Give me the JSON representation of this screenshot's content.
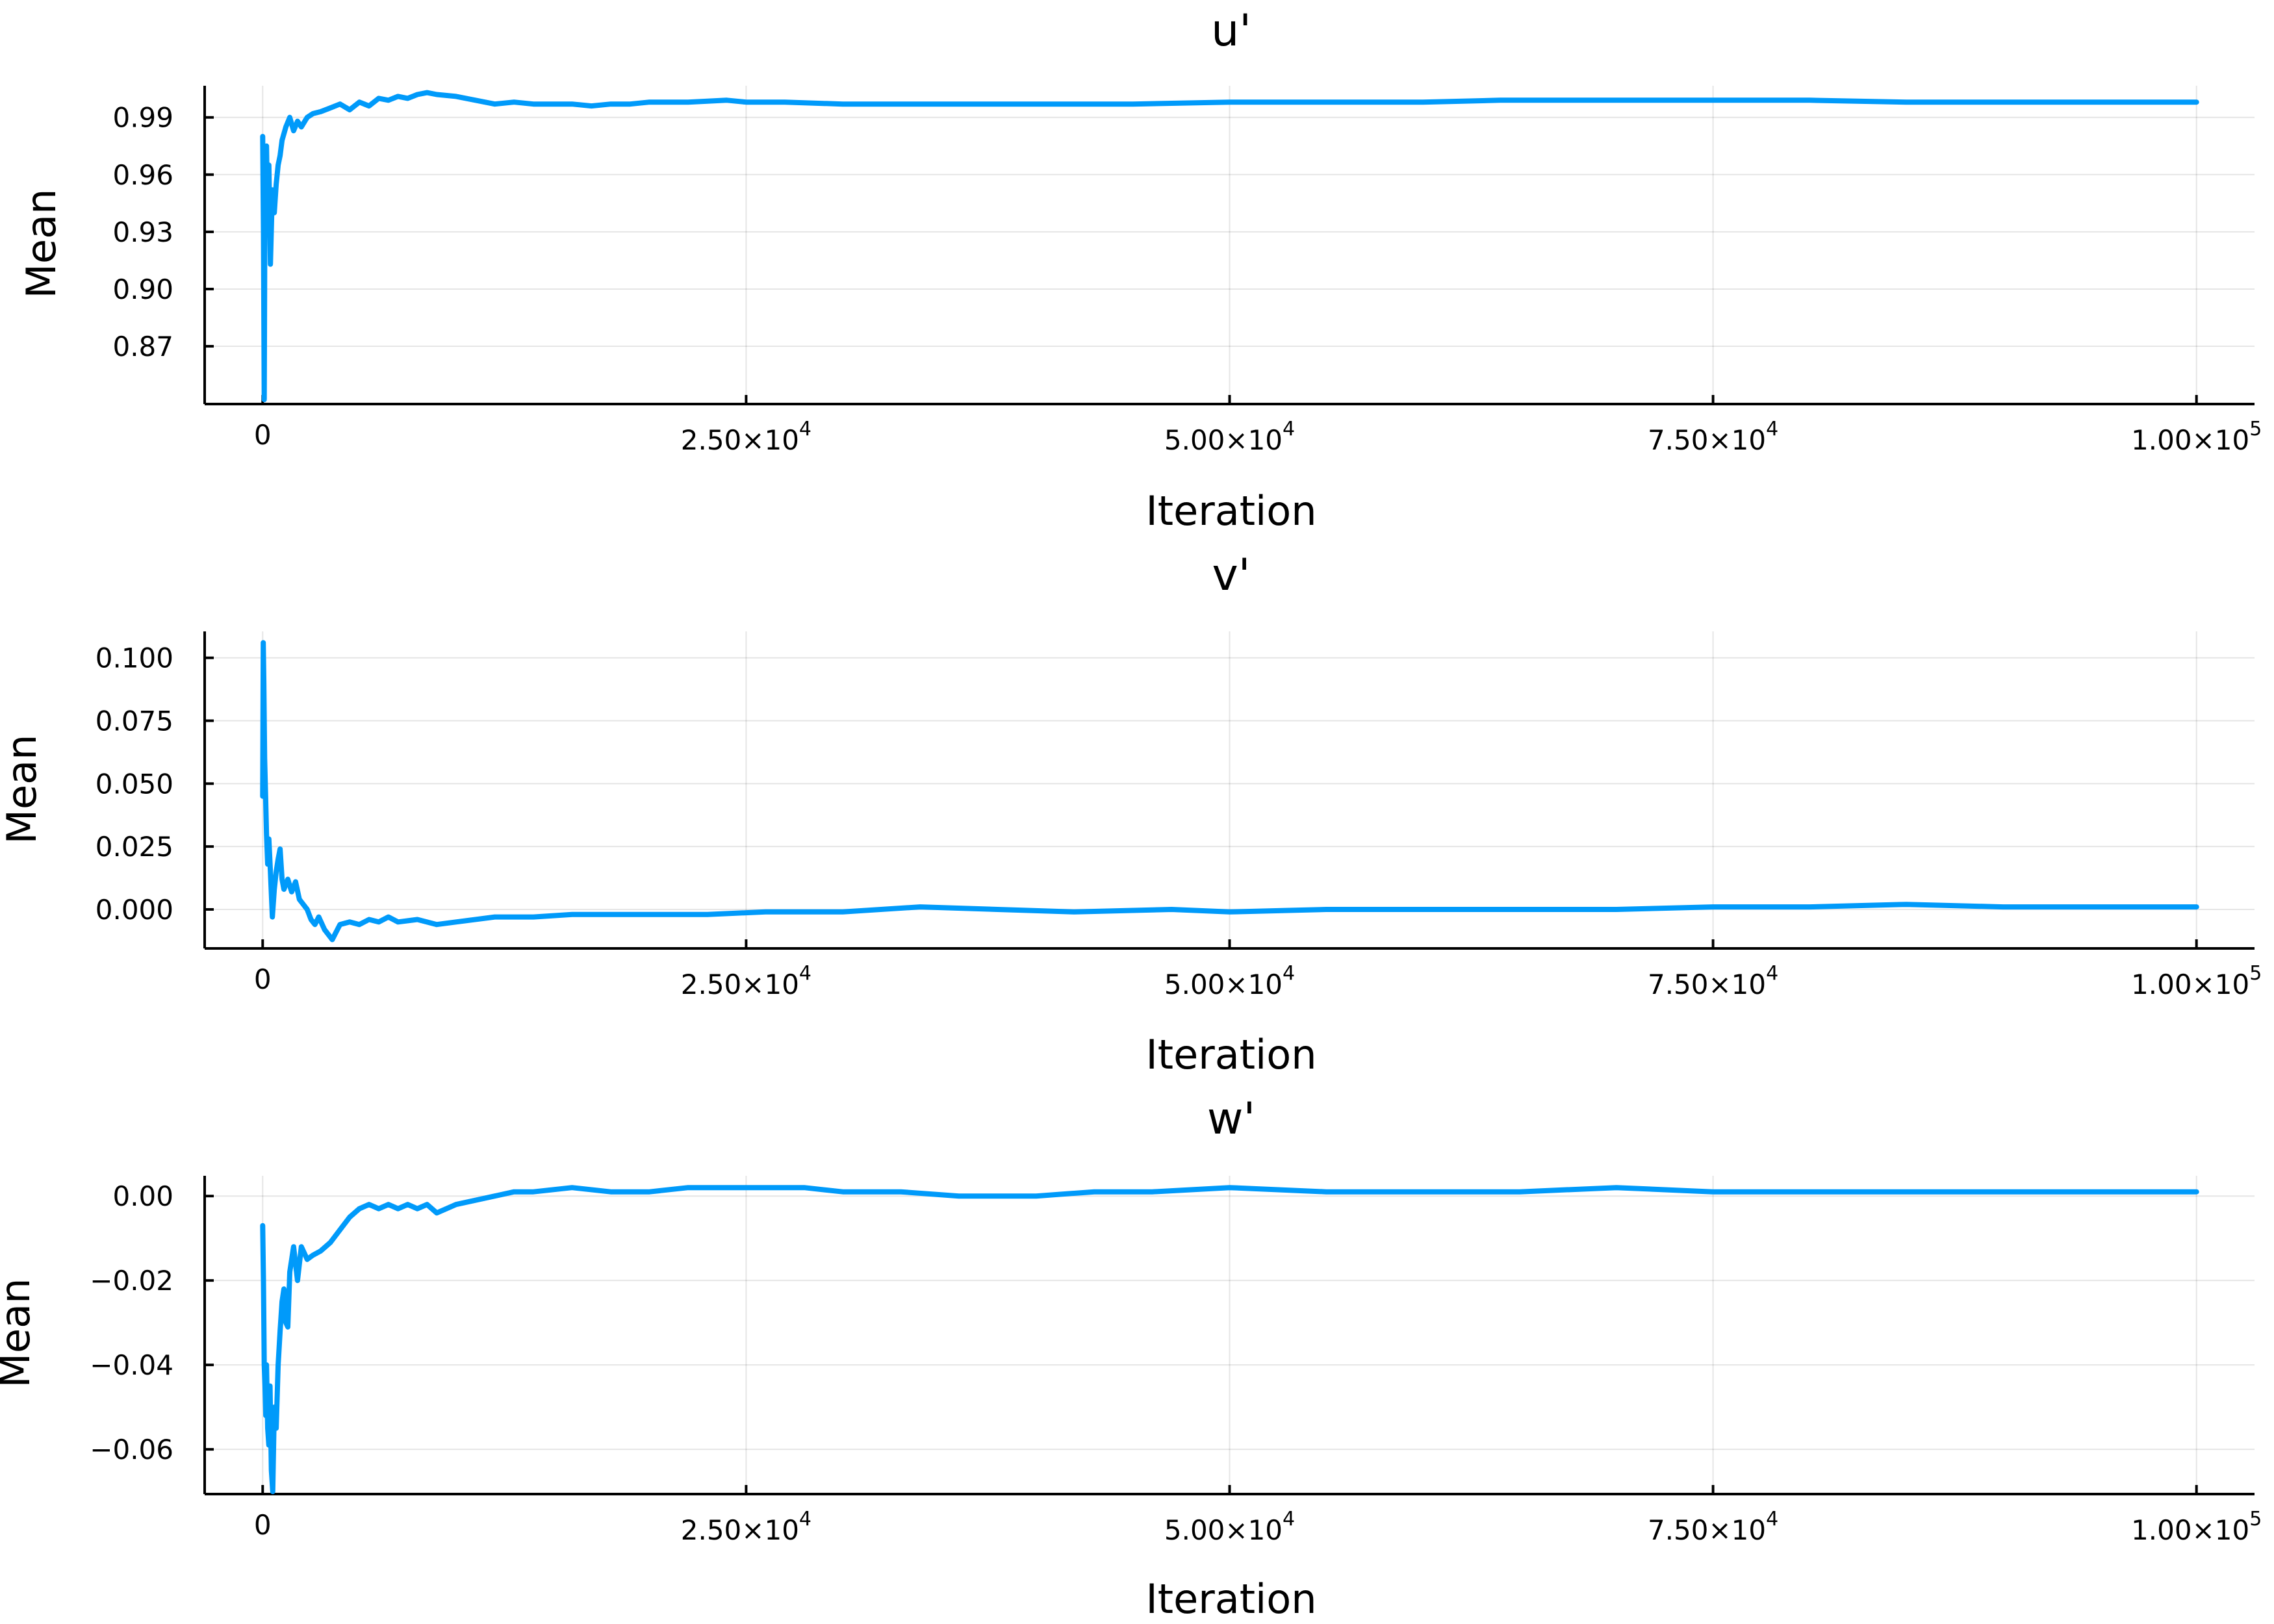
{
  "chart_data": [
    {
      "type": "line",
      "title": "u'",
      "xlabel": "Iteration",
      "ylabel": "Mean",
      "xlim": [
        -3000,
        103000
      ],
      "ylim": [
        0.8397,
        1.0066
      ],
      "grid": true,
      "legend": "none",
      "xticks": [
        {
          "value": 0,
          "mantissa": "0",
          "exp": ""
        },
        {
          "value": 25000,
          "mantissa": "2.50×10",
          "exp": "4"
        },
        {
          "value": 50000,
          "mantissa": "5.00×10",
          "exp": "4"
        },
        {
          "value": 75000,
          "mantissa": "7.50×10",
          "exp": "4"
        },
        {
          "value": 100000,
          "mantissa": "1.00×10",
          "exp": "5"
        }
      ],
      "yticks": [
        {
          "value": 0.87,
          "label": "0.87"
        },
        {
          "value": 0.9,
          "label": "0.90"
        },
        {
          "value": 0.93,
          "label": "0.93"
        },
        {
          "value": 0.96,
          "label": "0.96"
        },
        {
          "value": 0.99,
          "label": "0.99"
        }
      ],
      "series": [
        {
          "color": "#009AFA",
          "x": [
            0,
            40,
            80,
            120,
            160,
            200,
            260,
            320,
            400,
            500,
            600,
            700,
            800,
            900,
            1000,
            1200,
            1400,
            1600,
            1800,
            2000,
            2300,
            2600,
            3000,
            3500,
            4000,
            4500,
            5000,
            5500,
            6000,
            6500,
            7000,
            7500,
            8000,
            8500,
            9000,
            10000,
            11000,
            12000,
            13000,
            14000,
            15000,
            16000,
            17000,
            18000,
            19000,
            20000,
            22000,
            24000,
            25000,
            27000,
            30000,
            33000,
            36000,
            40000,
            45000,
            50000,
            55000,
            60000,
            64000,
            70000,
            75000,
            80000,
            85000,
            90000,
            95000,
            100000
          ],
          "y": [
            0.98,
            0.93,
            0.842,
            0.965,
            0.945,
            0.975,
            0.935,
            0.965,
            0.913,
            0.952,
            0.94,
            0.955,
            0.965,
            0.97,
            0.978,
            0.985,
            0.99,
            0.983,
            0.988,
            0.985,
            0.99,
            0.992,
            0.993,
            0.995,
            0.997,
            0.994,
            0.998,
            0.996,
            1.0,
            0.999,
            1.001,
            1.0,
            1.002,
            1.003,
            1.002,
            1.001,
            0.999,
            0.997,
            0.998,
            0.997,
            0.997,
            0.997,
            0.996,
            0.997,
            0.997,
            0.998,
            0.998,
            0.999,
            0.998,
            0.998,
            0.997,
            0.997,
            0.997,
            0.997,
            0.997,
            0.998,
            0.998,
            0.998,
            0.999,
            0.999,
            0.999,
            0.999,
            0.998,
            0.998,
            0.998,
            0.998
          ]
        }
      ]
    },
    {
      "type": "line",
      "title": "v'",
      "xlabel": "Iteration",
      "ylabel": "Mean",
      "xlim": [
        -3000,
        103000
      ],
      "ylim": [
        -0.0155,
        0.1105
      ],
      "grid": true,
      "legend": "none",
      "xticks": [
        {
          "value": 0,
          "mantissa": "0",
          "exp": ""
        },
        {
          "value": 25000,
          "mantissa": "2.50×10",
          "exp": "4"
        },
        {
          "value": 50000,
          "mantissa": "5.00×10",
          "exp": "4"
        },
        {
          "value": 75000,
          "mantissa": "7.50×10",
          "exp": "4"
        },
        {
          "value": 100000,
          "mantissa": "1.00×10",
          "exp": "5"
        }
      ],
      "yticks": [
        {
          "value": 0.0,
          "label": "0.000"
        },
        {
          "value": 0.025,
          "label": "0.025"
        },
        {
          "value": 0.05,
          "label": "0.050"
        },
        {
          "value": 0.075,
          "label": "0.075"
        },
        {
          "value": 0.1,
          "label": "0.100"
        }
      ],
      "series": [
        {
          "color": "#009AFA",
          "x": [
            0,
            30,
            60,
            100,
            150,
            200,
            260,
            320,
            400,
            500,
            600,
            700,
            800,
            900,
            1000,
            1100,
            1300,
            1500,
            1700,
            1900,
            2100,
            2300,
            2500,
            2700,
            2900,
            3200,
            3600,
            4000,
            4500,
            5000,
            5500,
            6000,
            6500,
            7000,
            8000,
            9000,
            10000,
            12000,
            14000,
            16000,
            18000,
            20000,
            23000,
            26000,
            30000,
            34000,
            38000,
            42000,
            47000,
            50000,
            55000,
            60000,
            65000,
            70000,
            75000,
            80000,
            85000,
            90000,
            95000,
            100000
          ],
          "y": [
            0.045,
            0.106,
            0.09,
            0.06,
            0.045,
            0.03,
            0.018,
            0.028,
            0.015,
            -0.003,
            0.008,
            0.015,
            0.02,
            0.024,
            0.012,
            0.008,
            0.012,
            0.007,
            0.011,
            0.004,
            0.002,
            0.0,
            -0.004,
            -0.006,
            -0.003,
            -0.008,
            -0.012,
            -0.006,
            -0.005,
            -0.006,
            -0.004,
            -0.005,
            -0.003,
            -0.005,
            -0.004,
            -0.006,
            -0.005,
            -0.003,
            -0.003,
            -0.002,
            -0.002,
            -0.002,
            -0.002,
            -0.001,
            -0.001,
            0.001,
            0.0,
            -0.001,
            0.0,
            -0.001,
            0.0,
            0.0,
            0.0,
            0.0,
            0.001,
            0.001,
            0.002,
            0.001,
            0.001,
            0.001
          ]
        }
      ]
    },
    {
      "type": "line",
      "title": "w'",
      "xlabel": "Iteration",
      "ylabel": "Mean",
      "xlim": [
        -3000,
        103000
      ],
      "ylim": [
        -0.0706,
        0.0048
      ],
      "grid": true,
      "legend": "none",
      "xticks": [
        {
          "value": 0,
          "mantissa": "0",
          "exp": ""
        },
        {
          "value": 25000,
          "mantissa": "2.50×10",
          "exp": "4"
        },
        {
          "value": 50000,
          "mantissa": "5.00×10",
          "exp": "4"
        },
        {
          "value": 75000,
          "mantissa": "7.50×10",
          "exp": "4"
        },
        {
          "value": 100000,
          "mantissa": "1.00×10",
          "exp": "5"
        }
      ],
      "yticks": [
        {
          "value": -0.06,
          "label": "−0.06"
        },
        {
          "value": -0.04,
          "label": "−0.04"
        },
        {
          "value": -0.02,
          "label": "−0.02"
        },
        {
          "value": 0.0,
          "label": "0.00"
        }
      ],
      "series": [
        {
          "color": "#009AFA",
          "x": [
            0,
            40,
            80,
            120,
            160,
            200,
            260,
            320,
            380,
            450,
            520,
            600,
            700,
            800,
            900,
            1000,
            1100,
            1200,
            1300,
            1400,
            1600,
            1800,
            2000,
            2300,
            2600,
            3000,
            3500,
            4000,
            4500,
            5000,
            5500,
            6000,
            6500,
            7000,
            7500,
            8000,
            8500,
            9000,
            9500,
            10000,
            11000,
            12000,
            13000,
            14000,
            16000,
            18000,
            20000,
            22000,
            24000,
            26000,
            28000,
            30000,
            33000,
            36000,
            40000,
            43000,
            46000,
            50000,
            55000,
            60000,
            65000,
            70000,
            75000,
            80000,
            85000,
            90000,
            95000,
            100000
          ],
          "y": [
            -0.007,
            -0.02,
            -0.04,
            -0.045,
            -0.052,
            -0.04,
            -0.055,
            -0.059,
            -0.045,
            -0.065,
            -0.07,
            -0.05,
            -0.055,
            -0.04,
            -0.032,
            -0.025,
            -0.022,
            -0.03,
            -0.031,
            -0.018,
            -0.012,
            -0.02,
            -0.012,
            -0.015,
            -0.014,
            -0.013,
            -0.011,
            -0.008,
            -0.005,
            -0.003,
            -0.002,
            -0.003,
            -0.002,
            -0.003,
            -0.002,
            -0.003,
            -0.002,
            -0.004,
            -0.003,
            -0.002,
            -0.001,
            0.0,
            0.001,
            0.001,
            0.002,
            0.001,
            0.001,
            0.002,
            0.002,
            0.002,
            0.002,
            0.001,
            0.001,
            0.0,
            0.0,
            0.001,
            0.001,
            0.002,
            0.001,
            0.001,
            0.001,
            0.002,
            0.001,
            0.001,
            0.001,
            0.001,
            0.001,
            0.001
          ]
        }
      ]
    }
  ]
}
